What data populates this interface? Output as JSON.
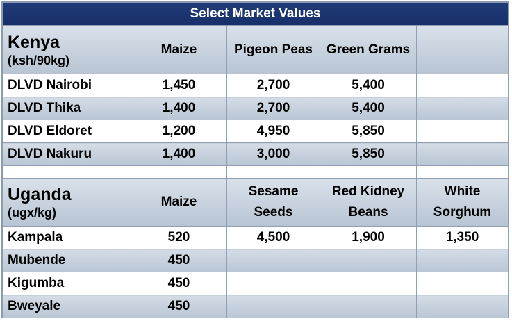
{
  "title": "Select Market Values",
  "kenya": {
    "country": "Kenya",
    "unit": "(ksh/90kg)",
    "headers": [
      "Maize",
      "Pigeon Peas",
      "Green Grams",
      ""
    ],
    "rows": [
      {
        "market": "DLVD Nairobi",
        "values": [
          "1,450",
          "2,700",
          "5,400",
          ""
        ]
      },
      {
        "market": "DLVD Thika",
        "values": [
          "1,400",
          "2,700",
          "5,400",
          ""
        ]
      },
      {
        "market": "DLVD Eldoret",
        "values": [
          "1,200",
          "4,950",
          "5,850",
          ""
        ]
      },
      {
        "market": "DLVD Nakuru",
        "values": [
          "1,400",
          "3,000",
          "5,850",
          ""
        ]
      }
    ]
  },
  "uganda": {
    "country": "Uganda",
    "unit": "(ugx/kg)",
    "headers": [
      {
        "line1": "Maize",
        "line2": ""
      },
      {
        "line1": "Sesame",
        "line2": "Seeds"
      },
      {
        "line1": "Red Kidney",
        "line2": "Beans"
      },
      {
        "line1": "White",
        "line2": "Sorghum"
      }
    ],
    "rows": [
      {
        "market": "Kampala",
        "values": [
          "520",
          "4,500",
          "1,900",
          "1,350"
        ]
      },
      {
        "market": "Mubende",
        "values": [
          "450",
          "",
          "",
          ""
        ]
      },
      {
        "market": "Kigumba",
        "values": [
          "450",
          "",
          "",
          ""
        ]
      },
      {
        "market": "Bweyale",
        "values": [
          "450",
          "",
          "",
          ""
        ]
      }
    ]
  }
}
